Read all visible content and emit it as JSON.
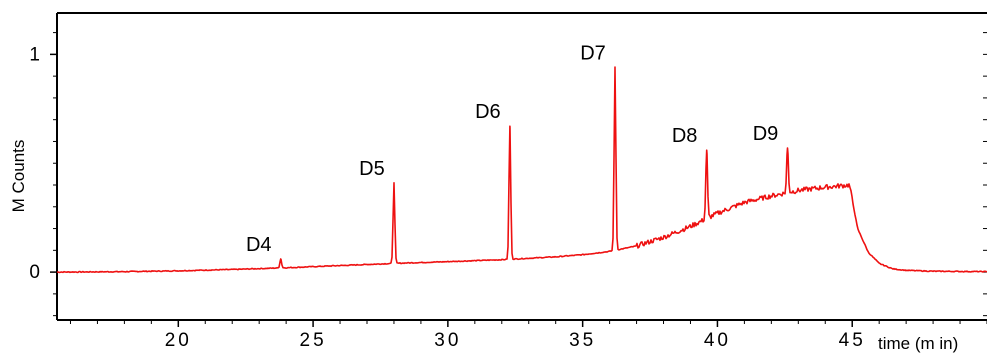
{
  "chart_data": {
    "type": "line",
    "title": "",
    "xlabel": "time (m in)",
    "ylabel": "M Counts",
    "xlim": [
      15.5,
      50
    ],
    "ylim": [
      -0.22,
      1.19
    ],
    "x_ticks": [
      20,
      25,
      30,
      35,
      40,
      45
    ],
    "x_tick_labels": [
      "20",
      "25",
      "30",
      "35",
      "40",
      "45"
    ],
    "y_ticks": [
      0,
      1
    ],
    "y_tick_labels": [
      "0",
      "1"
    ],
    "line_color": "#ee1111",
    "grid": false,
    "baseline_series": {
      "x": [
        15.5,
        18,
        20,
        22,
        24,
        26,
        28,
        30,
        32,
        34,
        35,
        36,
        37,
        38,
        39,
        40,
        41,
        42,
        43,
        44,
        44.9,
        45.2,
        45.6,
        46,
        46.5,
        47,
        48,
        50
      ],
      "y": [
        0.0,
        0.002,
        0.006,
        0.012,
        0.02,
        0.03,
        0.04,
        0.048,
        0.057,
        0.07,
        0.08,
        0.095,
        0.12,
        0.16,
        0.21,
        0.27,
        0.32,
        0.35,
        0.375,
        0.39,
        0.4,
        0.2,
        0.09,
        0.04,
        0.015,
        0.008,
        0.004,
        0.002
      ]
    },
    "peaks": [
      {
        "label": "D4",
        "x": 23.8,
        "y": 0.06
      },
      {
        "label": "D5",
        "x": 28.0,
        "y": 0.41
      },
      {
        "label": "D6",
        "x": 32.3,
        "y": 0.67
      },
      {
        "label": "D7",
        "x": 36.2,
        "y": 0.94
      },
      {
        "label": "D8",
        "x": 39.6,
        "y": 0.56
      },
      {
        "label": "D9",
        "x": 42.6,
        "y": 0.57
      }
    ]
  }
}
